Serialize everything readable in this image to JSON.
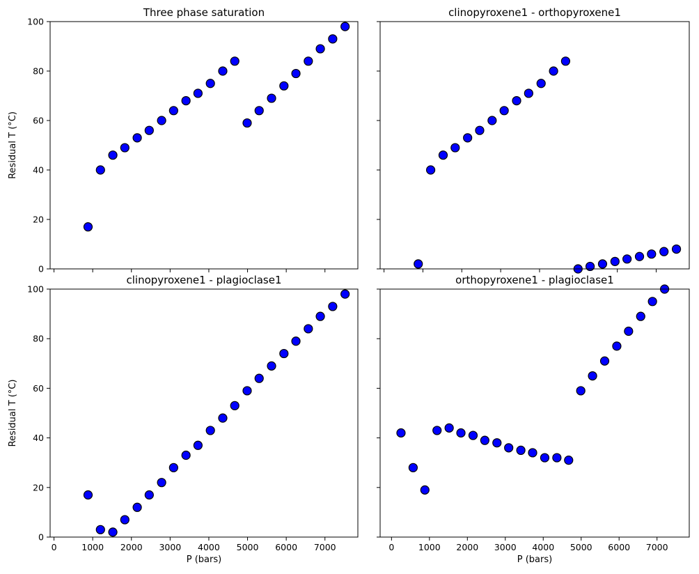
{
  "chart_data": [
    {
      "type": "scatter",
      "title": "Three phase saturation",
      "ylabel": "Residual T (°C)",
      "xlabel": "",
      "xlim": [
        -100,
        7850
      ],
      "ylim": [
        0,
        100
      ],
      "xticks": [
        0,
        1000,
        2000,
        3000,
        4000,
        5000,
        6000,
        7000
      ],
      "yticks": [
        0,
        20,
        40,
        60,
        80,
        100
      ],
      "show_xticklabels": false,
      "show_yticklabels": true,
      "marker_color": "#0000ff",
      "x": [
        880,
        1200,
        1520,
        1830,
        2150,
        2460,
        2780,
        3090,
        3410,
        3720,
        4040,
        4360,
        4670,
        4990,
        5300,
        5620,
        5940,
        6250,
        6570,
        6880,
        7200,
        7520
      ],
      "y": [
        17,
        40,
        46,
        49,
        53,
        56,
        60,
        64,
        68,
        71,
        75,
        80,
        84,
        59,
        64,
        69,
        74,
        79,
        84,
        89,
        93,
        98
      ]
    },
    {
      "type": "scatter",
      "title": "clinopyroxene1 - orthopyroxene1",
      "ylabel": "",
      "xlabel": "",
      "xlim": [
        -100,
        7850
      ],
      "ylim": [
        0,
        100
      ],
      "xticks": [
        0,
        1000,
        2000,
        3000,
        4000,
        5000,
        6000,
        7000
      ],
      "yticks": [
        0,
        20,
        40,
        60,
        80,
        100
      ],
      "show_xticklabels": false,
      "show_yticklabels": false,
      "marker_color": "#0000ff",
      "x": [
        880,
        1200,
        1520,
        1830,
        2150,
        2460,
        2780,
        3090,
        3410,
        3720,
        4040,
        4360,
        4670,
        4990,
        5300,
        5620,
        5940,
        6250,
        6570,
        6880,
        7200,
        7520
      ],
      "y": [
        2,
        40,
        46,
        49,
        53,
        56,
        60,
        64,
        68,
        71,
        75,
        80,
        84,
        0,
        1,
        2,
        3,
        4,
        5,
        6,
        7,
        8
      ]
    },
    {
      "type": "scatter",
      "title": "clinopyroxene1 - plagioclase1",
      "ylabel": "Residual T (°C)",
      "xlabel": "P (bars)",
      "xlim": [
        -100,
        7850
      ],
      "ylim": [
        0,
        100
      ],
      "xticks": [
        0,
        1000,
        2000,
        3000,
        4000,
        5000,
        6000,
        7000
      ],
      "yticks": [
        0,
        20,
        40,
        60,
        80,
        100
      ],
      "show_xticklabels": true,
      "show_yticklabels": true,
      "marker_color": "#0000ff",
      "x": [
        880,
        1200,
        1520,
        1830,
        2150,
        2460,
        2780,
        3090,
        3410,
        3720,
        4040,
        4360,
        4670,
        4990,
        5300,
        5620,
        5940,
        6250,
        6570,
        6880,
        7200,
        7520
      ],
      "y": [
        17,
        3,
        2,
        7,
        12,
        17,
        22,
        28,
        33,
        37,
        43,
        48,
        53,
        59,
        64,
        69,
        74,
        79,
        84,
        89,
        93,
        98
      ]
    },
    {
      "type": "scatter",
      "title": "orthopyroxene1 - plagioclase1",
      "ylabel": "",
      "xlabel": "P (bars)",
      "xlim": [
        -300,
        7850
      ],
      "ylim": [
        0,
        100
      ],
      "xticks": [
        0,
        1000,
        2000,
        3000,
        4000,
        5000,
        6000,
        7000
      ],
      "yticks": [
        0,
        20,
        40,
        60,
        80,
        100
      ],
      "show_xticklabels": true,
      "show_yticklabels": false,
      "marker_color": "#0000ff",
      "x": [
        250,
        570,
        880,
        1200,
        1520,
        1830,
        2150,
        2460,
        2780,
        3090,
        3410,
        3720,
        4040,
        4360,
        4670,
        4990,
        5300,
        5620,
        5940,
        6250,
        6570,
        6880,
        7200
      ],
      "y": [
        42,
        28,
        19,
        43,
        44,
        42,
        41,
        39,
        38,
        36,
        35,
        34,
        32,
        32,
        31,
        59,
        65,
        71,
        77,
        83,
        89,
        95,
        100
      ]
    }
  ]
}
